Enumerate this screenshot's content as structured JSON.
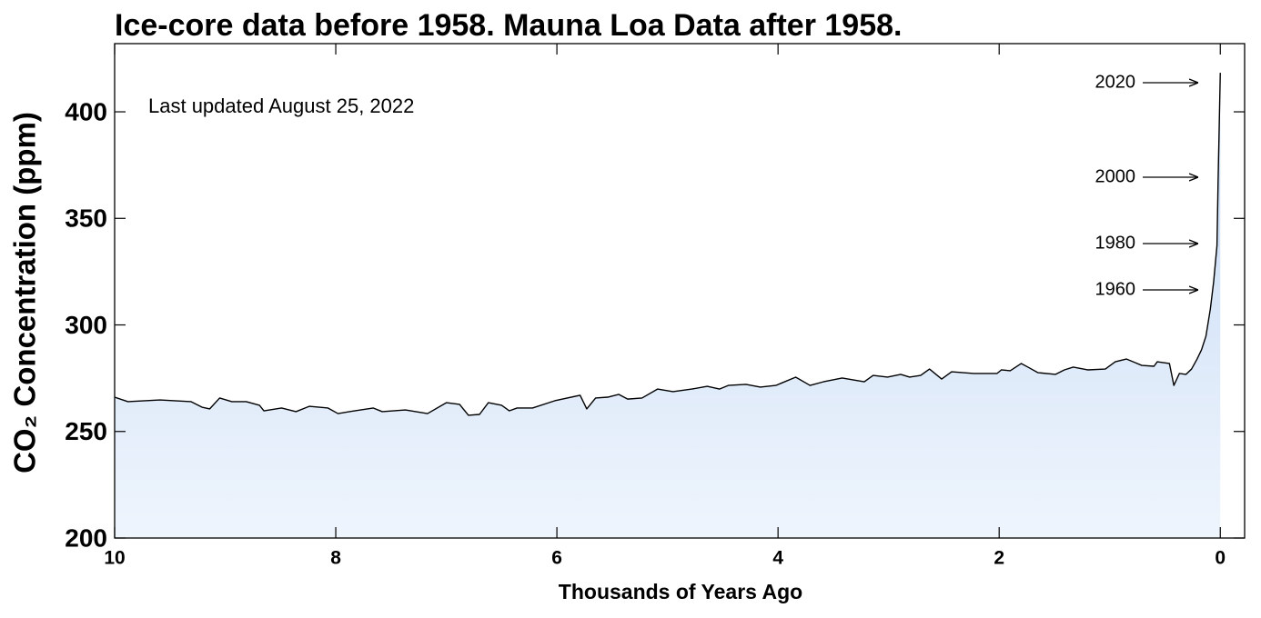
{
  "chart_data": {
    "type": "area",
    "title": "Ice-core data before 1958. Mauna Loa Data after 1958.",
    "xlabel": "Thousands of Years Ago",
    "ylabel": "CO₂ Concentration (ppm)",
    "annotations": [
      "Last updated August 25, 2022",
      "2020",
      "2000",
      "1980",
      "1960"
    ],
    "color": "#000000",
    "fill_top": "#c3d8f4",
    "fill_bottom": "#eff5fd",
    "xlim": [
      10,
      -0.22
    ],
    "ylim": [
      200,
      432
    ],
    "xticks": [
      10,
      8,
      6,
      4,
      2,
      0
    ],
    "yticks": [
      200,
      250,
      300,
      350,
      400
    ],
    "x": [
      10.0,
      9.88,
      9.59,
      9.31,
      9.21,
      9.14,
      9.05,
      8.94,
      8.81,
      8.69,
      8.65,
      8.49,
      8.36,
      8.24,
      8.07,
      7.98,
      7.83,
      7.66,
      7.58,
      7.37,
      7.17,
      7.0,
      6.88,
      6.8,
      6.7,
      6.62,
      6.5,
      6.43,
      6.36,
      6.22,
      6.02,
      5.79,
      5.73,
      5.65,
      5.54,
      5.44,
      5.36,
      5.23,
      5.09,
      4.95,
      4.78,
      4.64,
      4.53,
      4.45,
      4.29,
      4.16,
      4.02,
      3.96,
      3.84,
      3.71,
      3.59,
      3.42,
      3.22,
      3.14,
      3.01,
      2.89,
      2.81,
      2.71,
      2.63,
      2.52,
      2.43,
      2.23,
      2.02,
      1.98,
      1.9,
      1.8,
      1.74,
      1.65,
      1.49,
      1.41,
      1.33,
      1.2,
      1.04,
      0.95,
      0.85,
      0.77,
      0.71,
      0.6,
      0.57,
      0.46,
      0.42,
      0.37,
      0.31,
      0.26,
      0.21,
      0.17,
      0.13,
      0.09,
      0.06,
      0.03,
      0.02,
      0
    ],
    "values": [
      266.1,
      264.0,
      264.8,
      264.0,
      261.4,
      260.6,
      265.7,
      264.0,
      264.0,
      262.3,
      259.7,
      261.0,
      259.3,
      261.8,
      261.0,
      258.4,
      259.7,
      261.0,
      259.3,
      260.1,
      258.4,
      263.5,
      262.7,
      257.6,
      258.0,
      263.5,
      262.3,
      259.7,
      261.0,
      261.0,
      264.4,
      267.0,
      260.6,
      265.7,
      266.1,
      267.4,
      265.2,
      265.7,
      269.9,
      268.7,
      269.9,
      271.2,
      269.9,
      271.6,
      272.1,
      270.8,
      271.6,
      272.9,
      275.5,
      271.6,
      273.3,
      275.1,
      273.3,
      276.3,
      275.5,
      276.8,
      275.5,
      276.3,
      279.3,
      274.6,
      278.0,
      277.2,
      277.2,
      278.9,
      278.5,
      281.9,
      280.2,
      277.6,
      276.8,
      278.9,
      280.2,
      278.9,
      279.3,
      282.7,
      284.0,
      282.3,
      281.0,
      280.6,
      282.7,
      281.9,
      271.6,
      277.2,
      276.8,
      279.3,
      284.0,
      288.3,
      294.7,
      307.5,
      320.3,
      337.3,
      367.2,
      418.3
    ]
  }
}
